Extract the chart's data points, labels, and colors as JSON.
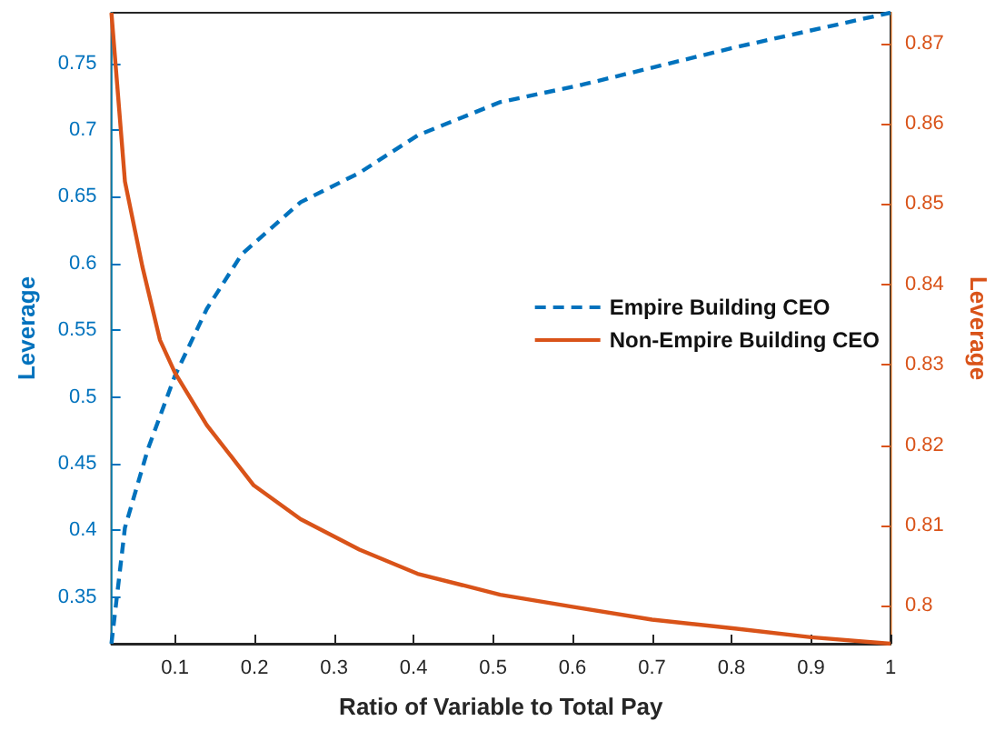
{
  "chart_data": {
    "type": "line",
    "xlabel": "Ratio of Variable to Total Pay",
    "ylabel": "Leverage",
    "y2label": "Leverage",
    "xlim": [
      0.02,
      1
    ],
    "xticks": [
      0.1,
      0.2,
      0.3,
      0.4,
      0.5,
      0.6,
      0.7,
      0.8,
      0.9,
      1
    ],
    "ylim": [
      0.315,
      0.788
    ],
    "yticks": [
      0.35,
      0.4,
      0.45,
      0.5,
      0.55,
      0.6,
      0.65,
      0.7,
      0.75
    ],
    "y2lim": [
      0.7953,
      0.8738
    ],
    "y2ticks": [
      0.8,
      0.81,
      0.82,
      0.83,
      0.84,
      0.85,
      0.86,
      0.87
    ],
    "grid": false,
    "legend": "right",
    "marker": "none",
    "series": [
      {
        "name": "Empire Building CEO",
        "color": "#0072bd",
        "line_style": "dashed",
        "x": [
          0.02,
          0.037,
          0.066,
          0.1,
          0.14,
          0.184,
          0.258,
          0.332,
          0.405,
          0.509,
          0.612,
          0.804,
          1
        ],
        "values": [
          0.315,
          0.402,
          0.461,
          0.516,
          0.566,
          0.607,
          0.646,
          0.668,
          0.696,
          0.721,
          0.734,
          0.762,
          0.788
        ]
      },
      {
        "name": "Non-Empire Building CEO",
        "color": "#d95319",
        "line_style": "solid",
        "axis": "y2",
        "x": [
          0.02,
          0.037,
          0.059,
          0.081,
          0.1,
          0.14,
          0.199,
          0.258,
          0.332,
          0.405,
          0.509,
          0.6,
          0.7,
          0.804,
          0.9,
          1
        ],
        "values": [
          0.8738,
          0.8528,
          0.8422,
          0.8331,
          0.829,
          0.8225,
          0.815,
          0.8108,
          0.807,
          0.804,
          0.8014,
          0.7999,
          0.7983,
          0.7972,
          0.7961,
          0.7953
        ]
      }
    ]
  }
}
